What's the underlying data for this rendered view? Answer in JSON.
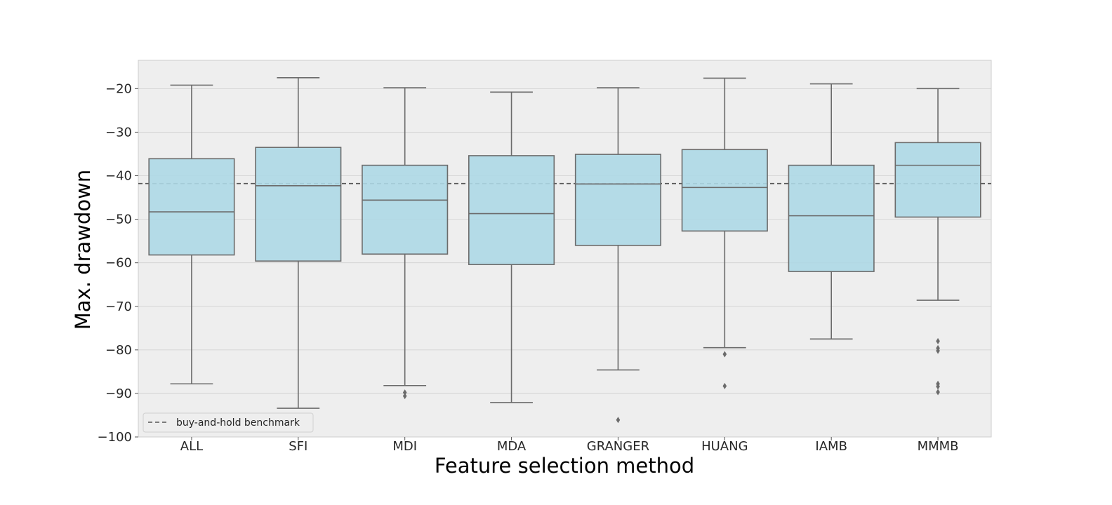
{
  "chart_data": {
    "type": "boxplot",
    "title": "",
    "xlabel": "Feature selection method",
    "ylabel": "Max. drawdown",
    "ylim": [
      -100,
      -13.5
    ],
    "yticks": [
      -20,
      -30,
      -40,
      -50,
      -60,
      -70,
      -80,
      -90,
      -100
    ],
    "ytick_labels": [
      "−20",
      "−30",
      "−40",
      "−50",
      "−60",
      "−70",
      "−80",
      "−90",
      "−100"
    ],
    "grid": true,
    "categories": [
      "ALL",
      "SFI",
      "MDI",
      "MDA",
      "GRANGER",
      "HUANG",
      "IAMB",
      "MMMB"
    ],
    "boxes": [
      {
        "whislo": -87.8,
        "q1": -58.2,
        "med": -48.3,
        "q3": -36.1,
        "whishi": -19.2,
        "fliers": []
      },
      {
        "whislo": -93.4,
        "q1": -59.6,
        "med": -42.3,
        "q3": -33.5,
        "whishi": -17.5,
        "fliers": []
      },
      {
        "whislo": -88.2,
        "q1": -58.0,
        "med": -45.6,
        "q3": -37.6,
        "whishi": -19.8,
        "fliers": [
          -89.8,
          -90.6
        ]
      },
      {
        "whislo": -92.1,
        "q1": -60.4,
        "med": -48.7,
        "q3": -35.4,
        "whishi": -20.8,
        "fliers": []
      },
      {
        "whislo": -84.6,
        "q1": -56.0,
        "med": -41.9,
        "q3": -35.1,
        "whishi": -19.8,
        "fliers": [
          -96.1
        ]
      },
      {
        "whislo": -79.5,
        "q1": -52.7,
        "med": -42.7,
        "q3": -34.0,
        "whishi": -17.6,
        "fliers": [
          -81.0,
          -88.3
        ]
      },
      {
        "whislo": -77.5,
        "q1": -62.0,
        "med": -49.2,
        "q3": -37.6,
        "whishi": -18.9,
        "fliers": []
      },
      {
        "whislo": -68.6,
        "q1": -49.5,
        "med": -37.6,
        "q3": -32.4,
        "whishi": -20.0,
        "fliers": [
          -78.0,
          -79.6,
          -80.2,
          -87.8,
          -88.4,
          -89.7
        ]
      }
    ],
    "reference_line": {
      "value": -41.8,
      "style": "dashed",
      "label": "buy-and-hold benchmark"
    },
    "legend": {
      "entries": [
        "buy-and-hold benchmark"
      ],
      "placement": "bottom-left"
    },
    "colors": {
      "box_fill": "#add8e6",
      "box_edge": "#6b6b6b",
      "background": "#eeeeee",
      "grid": "#cfcfcf",
      "reference": "#555555"
    }
  }
}
